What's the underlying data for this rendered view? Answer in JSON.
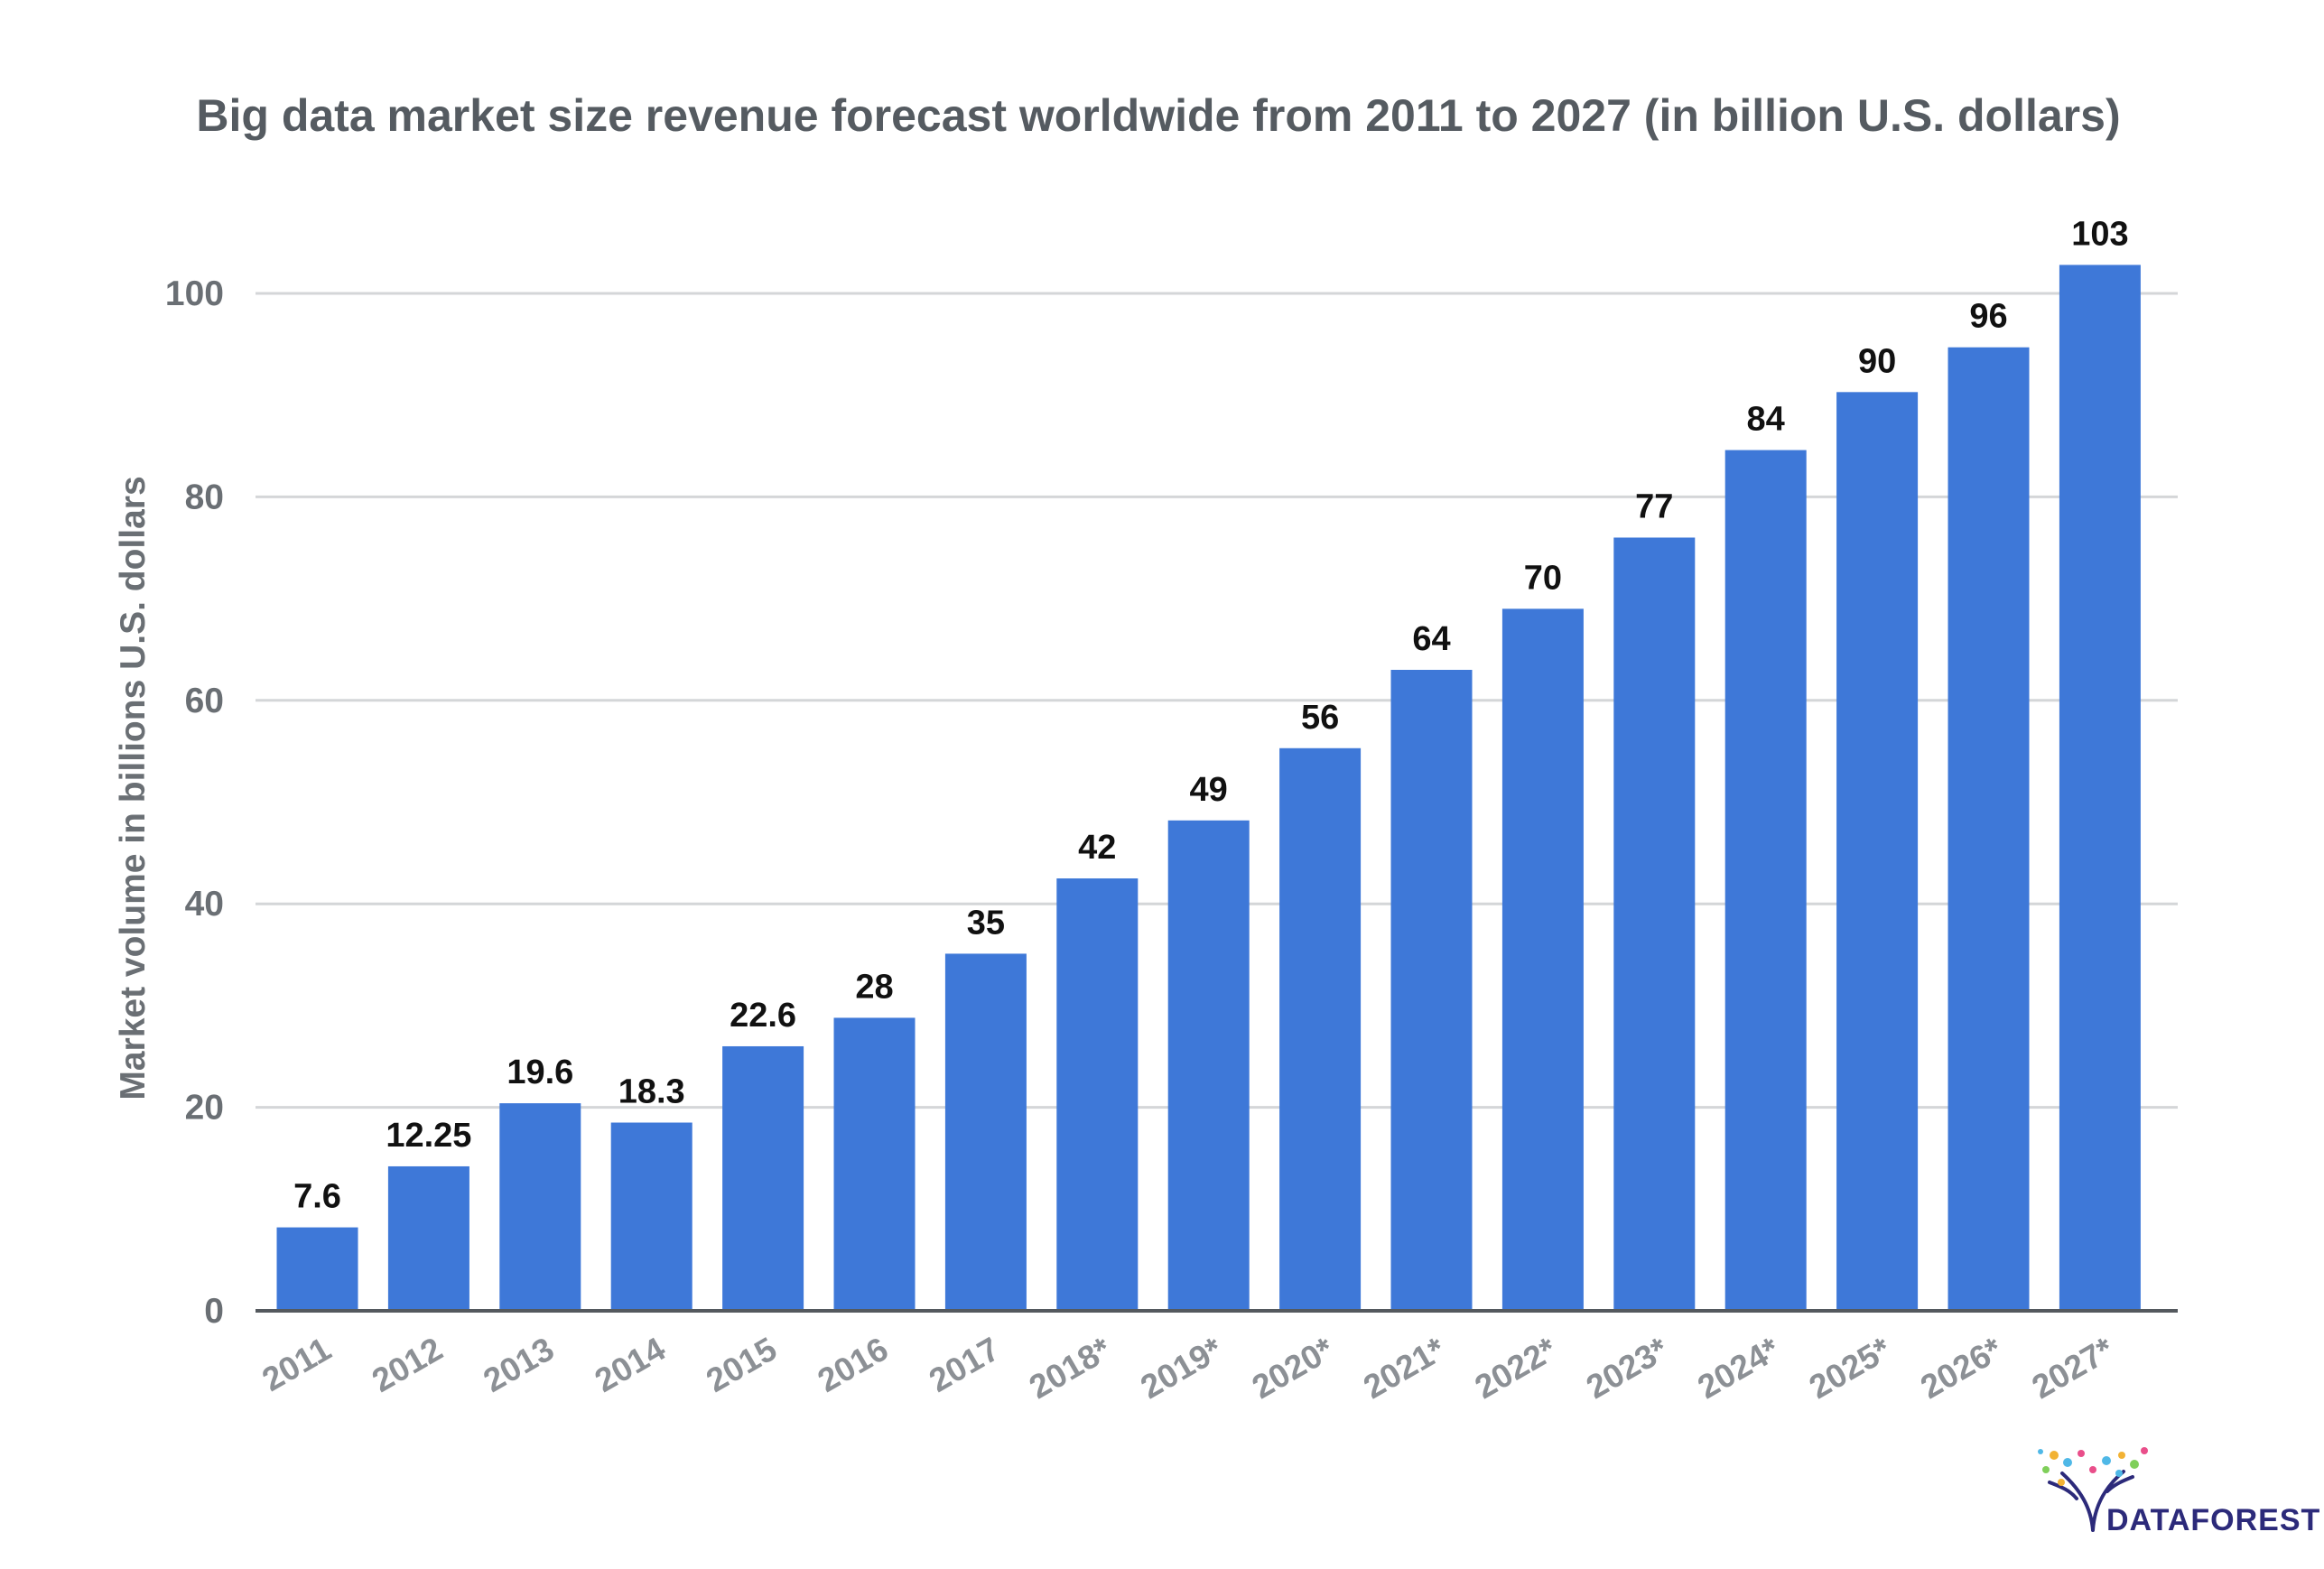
{
  "chart_data": {
    "type": "bar",
    "title": "Big data market size revenue forecast worldwide from 2011 to 2027 (in billion U.S. dollars)",
    "xlabel": "",
    "ylabel": "Market volume in billions U.S. dollars",
    "categories": [
      "2011",
      "2012",
      "2013",
      "2014",
      "2015",
      "2016",
      "2017",
      "2018*",
      "2019*",
      "2020*",
      "2021*",
      "2022*",
      "2023*",
      "2024*",
      "2025*",
      "2026*",
      "2027*"
    ],
    "values": [
      7.6,
      12.25,
      19.6,
      18.3,
      22.6,
      28,
      35,
      42,
      49,
      56,
      64,
      70,
      77,
      84,
      90,
      96,
      103
    ],
    "data_labels": [
      "7.6",
      "12.25",
      "19.6",
      "18.3",
      "22.6",
      "28",
      "35",
      "42",
      "49",
      "56",
      "64",
      "70",
      "77",
      "84",
      "90",
      "96",
      "103"
    ],
    "bar_heights_as_drawn": [
      8.2,
      14.2,
      20.4,
      18.5,
      26.0,
      28.8,
      35.1,
      42.5,
      48.2,
      55.3,
      63.0,
      69.0,
      76.0,
      84.6,
      90.3,
      94.7,
      102.8
    ],
    "ylim": [
      0,
      100
    ],
    "yticks": [
      0,
      20,
      40,
      60,
      80,
      100
    ],
    "grid": true,
    "legend": "none",
    "bar_color": "#3e78d8",
    "x_tick_rotation": "diagonal"
  },
  "logo": {
    "text": "DATAFOREST",
    "icon": "tree-icon"
  }
}
